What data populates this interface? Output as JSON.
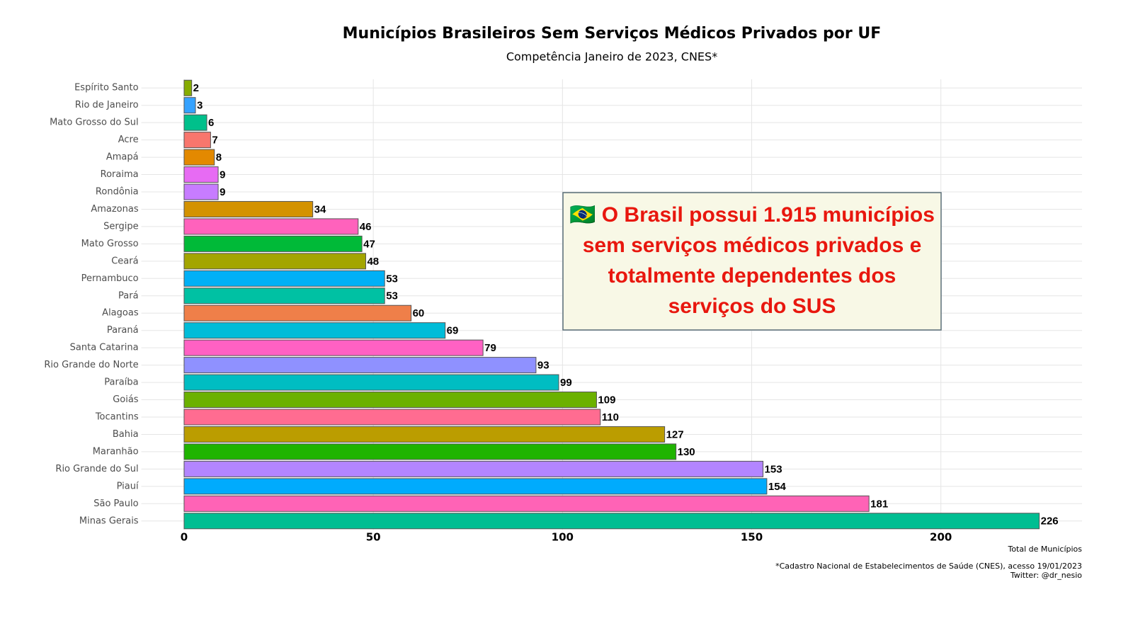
{
  "chart_data": {
    "type": "bar",
    "orientation": "horizontal",
    "title": "Municípios Brasileiros Sem Serviços Médicos Privados por UF",
    "subtitle": "Competência Janeiro de 2023, CNES*",
    "xlabel": "Total de Municípios",
    "caption": [
      "*Cadastro Nacional de Estabelecimentos de Saúde (CNES), acesso 19/01/2023",
      "Twitter: @dr_nesio"
    ],
    "annotation": [
      "🇧🇷 O Brasil possui 1.915 municípios",
      "sem serviços médicos privados e",
      "totalmente dependentes dos",
      "serviços do SUS"
    ],
    "categories": [
      "Espírito Santo",
      "Rio de Janeiro",
      "Mato Grosso do Sul",
      "Acre",
      "Amapá",
      "Roraima",
      "Rondônia",
      "Amazonas",
      "Sergipe",
      "Mato Grosso",
      "Ceará",
      "Pernambuco",
      "Pará",
      "Alagoas",
      "Paraná",
      "Santa Catarina",
      "Rio Grande do Norte",
      "Paraíba",
      "Goiás",
      "Tocantins",
      "Bahia",
      "Maranhão",
      "Rio Grande do Sul",
      "Piauí",
      "São Paulo",
      "Minas Gerais"
    ],
    "values": [
      2,
      3,
      6,
      7,
      8,
      9,
      9,
      34,
      46,
      47,
      48,
      53,
      53,
      60,
      69,
      79,
      93,
      99,
      109,
      110,
      127,
      130,
      153,
      154,
      181,
      226
    ],
    "colors": [
      "#86AC00",
      "#35A2FF",
      "#00C08B",
      "#F8766D",
      "#E38900",
      "#E76BF3",
      "#C77CFF",
      "#D39200",
      "#FF62BC",
      "#00BA38",
      "#A3A500",
      "#00B0F6",
      "#00C1A3",
      "#EF7F49",
      "#00BCD8",
      "#FF61C3",
      "#8F91FF",
      "#00BDC2",
      "#6BB100",
      "#FF6C91",
      "#BB9D00",
      "#1FB400",
      "#B385FF",
      "#00ABFD",
      "#FF63B6",
      "#00BE92"
    ],
    "xlim": [
      -11.3,
      237.3
    ],
    "xticks": [
      0,
      50,
      100,
      150,
      200
    ],
    "grid": true
  }
}
